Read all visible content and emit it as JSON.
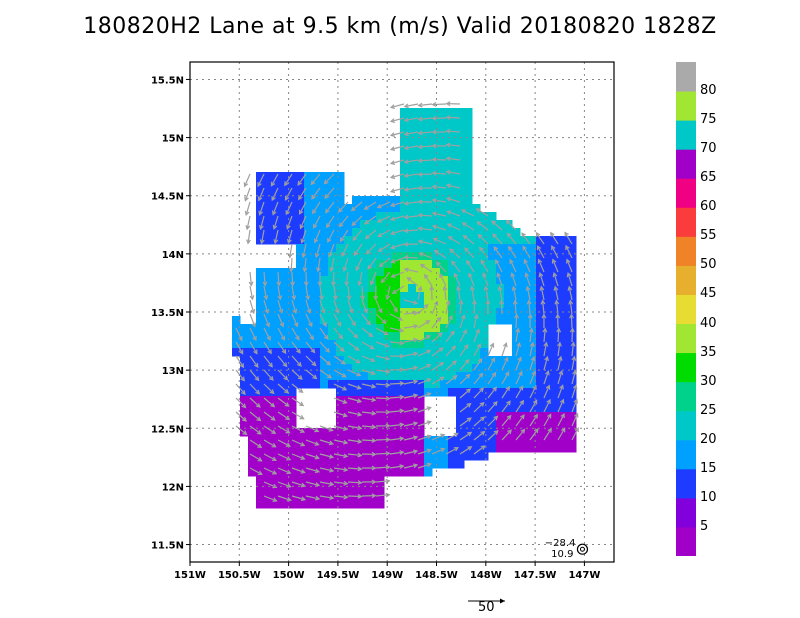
{
  "title": "180820H2 Lane at 9.5 km (m/s) Valid 20180820  1828Z",
  "map": {
    "lon_min": -151,
    "lon_max": -146.7,
    "lat_min": 11.35,
    "lat_max": 15.65,
    "lon_ticks": [
      {
        "value": -151,
        "label": "151W"
      },
      {
        "value": -150.5,
        "label": "150.5W"
      },
      {
        "value": -150,
        "label": "150W"
      },
      {
        "value": -149.5,
        "label": "149.5W"
      },
      {
        "value": -149,
        "label": "149W"
      },
      {
        "value": -148.5,
        "label": "148.5W"
      },
      {
        "value": -148,
        "label": "148W"
      },
      {
        "value": -147.5,
        "label": "147.5W"
      },
      {
        "value": -147,
        "label": "147W"
      }
    ],
    "lat_ticks": [
      {
        "value": 11.5,
        "label": "11.5N"
      },
      {
        "value": 12,
        "label": "12N"
      },
      {
        "value": 12.5,
        "label": "12.5N"
      },
      {
        "value": 13,
        "label": "13N"
      },
      {
        "value": 13.5,
        "label": "13.5N"
      },
      {
        "value": 14,
        "label": "14N"
      },
      {
        "value": 14.5,
        "label": "14.5N"
      },
      {
        "value": 15,
        "label": "15N"
      },
      {
        "value": 15.5,
        "label": "15.5N"
      }
    ],
    "center": {
      "lon": -148.8,
      "lat": 13.65
    },
    "grid": true
  },
  "colorbar": {
    "levels": [
      {
        "label": "5",
        "color": "#a000c8"
      },
      {
        "label": "10",
        "color": "#8200dc"
      },
      {
        "label": "15",
        "color": "#1e3cff"
      },
      {
        "label": "20",
        "color": "#00a0ff"
      },
      {
        "label": "25",
        "color": "#00c8c8"
      },
      {
        "label": "30",
        "color": "#00d28c"
      },
      {
        "label": "35",
        "color": "#00dc00"
      },
      {
        "label": "40",
        "color": "#a0e632"
      },
      {
        "label": "45",
        "color": "#e6dc32"
      },
      {
        "label": "50",
        "color": "#e6af2d"
      },
      {
        "label": "55",
        "color": "#f08228"
      },
      {
        "label": "60",
        "color": "#fa3c3c"
      },
      {
        "label": "65",
        "color": "#f00082"
      },
      {
        "label": "70",
        "color": "#a000c8"
      },
      {
        "label": "75",
        "color": "#00c8c8"
      },
      {
        "label": "80",
        "color": "#a0e632"
      },
      {
        "label": "",
        "color": "#aaaaaa"
      }
    ]
  },
  "annotation": {
    "line1": "−28.4",
    "line2": "10.9",
    "lon": -147.02,
    "lat": 11.46
  },
  "reference_vector": {
    "label": "50"
  }
}
